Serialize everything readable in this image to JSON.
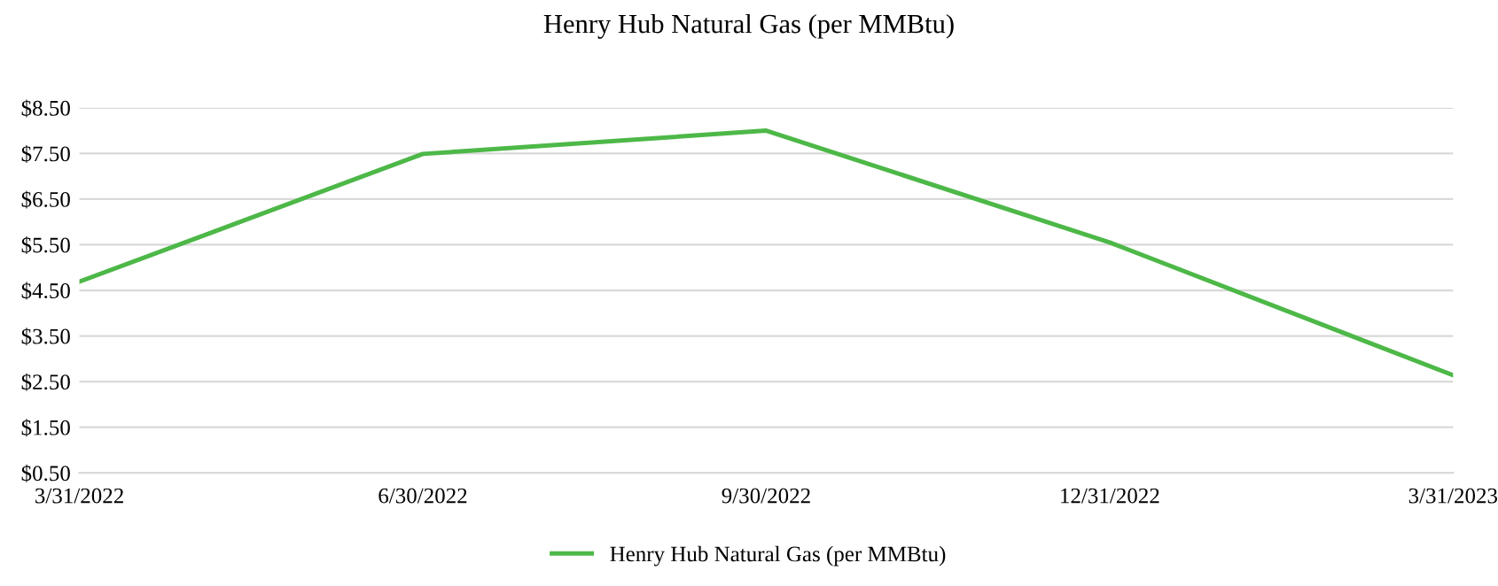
{
  "chart_data": {
    "type": "line",
    "title": "Henry Hub Natural Gas (per MMBtu)",
    "categories": [
      "3/31/2022",
      "6/30/2022",
      "9/30/2022",
      "12/31/2022",
      "3/31/2023"
    ],
    "series": [
      {
        "name": "Henry Hub Natural Gas (per MMBtu)",
        "color": "#4db848",
        "values": [
          4.69,
          7.49,
          8.0,
          5.55,
          2.64
        ]
      }
    ],
    "ylim": [
      0.5,
      8.5
    ],
    "yticks": [
      {
        "value": 0.5,
        "label": "$0.50"
      },
      {
        "value": 1.5,
        "label": "$1.50"
      },
      {
        "value": 2.5,
        "label": "$2.50"
      },
      {
        "value": 3.5,
        "label": "$3.50"
      },
      {
        "value": 4.5,
        "label": "$4.50"
      },
      {
        "value": 5.5,
        "label": "$5.50"
      },
      {
        "value": 6.5,
        "label": "$6.50"
      },
      {
        "value": 7.5,
        "label": "$7.50"
      },
      {
        "value": 8.5,
        "label": "$8.50"
      }
    ],
    "grid": "y",
    "legend": "bottom",
    "marker": "none",
    "line_style": "solid"
  }
}
